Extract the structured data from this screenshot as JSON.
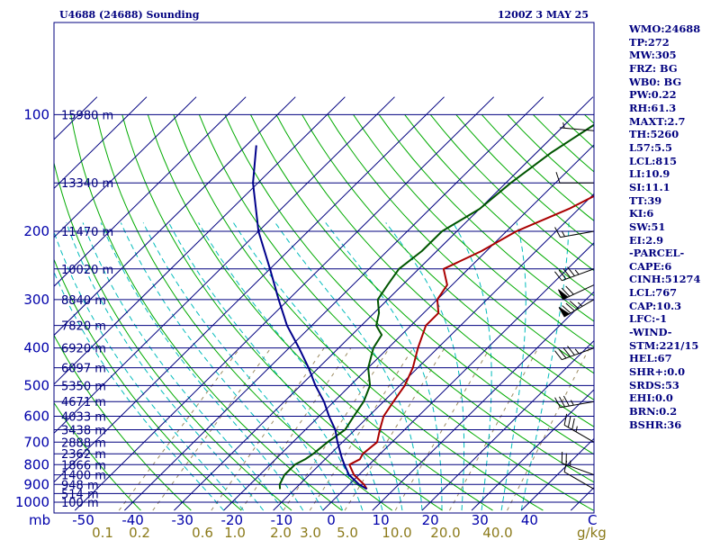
{
  "header": {
    "station": "U4688 (24688) Sounding",
    "time": "1200Z  3 MAY 25"
  },
  "chart_data": {
    "type": "line",
    "diagram": "skew-t log-p",
    "y_unit": "mb",
    "x_unit": "C",
    "mixing_ratio_unit": "g/kg",
    "pressure_range": [
      1000,
      100
    ],
    "pressure_ticks": [
      100,
      200,
      300,
      400,
      500,
      600,
      700,
      800,
      900,
      1000
    ],
    "temperature_ticks": [
      "-50",
      "-40",
      "-30",
      "-20",
      "-10",
      "0",
      "10",
      "20",
      "30",
      "40"
    ],
    "mixing_ratio_labels": [
      "0.1",
      "0.2",
      "0.6",
      "1.0",
      "2.0",
      "3.0",
      "5.0",
      "10.0",
      "20.0",
      "40.0"
    ],
    "height_levels": [
      {
        "p": 100,
        "label": "15980 m"
      },
      {
        "p": 150,
        "label": "13340 m"
      },
      {
        "p": 200,
        "label": "11470 m"
      },
      {
        "p": 250,
        "label": "10020 m"
      },
      {
        "p": 300,
        "label": "8840 m"
      },
      {
        "p": 350,
        "label": "7820 m"
      },
      {
        "p": 400,
        "label": "6920 m"
      },
      {
        "p": 450,
        "label": "6097 m"
      },
      {
        "p": 500,
        "label": "5350 m"
      },
      {
        "p": 550,
        "label": "4671 m"
      },
      {
        "p": 600,
        "label": "4033 m"
      },
      {
        "p": 650,
        "label": "3438 m"
      },
      {
        "p": 700,
        "label": "2888 m"
      },
      {
        "p": 750,
        "label": "2362 m"
      },
      {
        "p": 800,
        "label": "1866 m"
      },
      {
        "p": 850,
        "label": "1400 m"
      },
      {
        "p": 900,
        "label": "948 m"
      },
      {
        "p": 950,
        "label": "514 m"
      },
      {
        "p": 1000,
        "label": "100 m"
      }
    ],
    "series": [
      {
        "key": "temperature",
        "color": "#aa0000",
        "points": [
          [
            925,
            4.5
          ],
          [
            900,
            3
          ],
          [
            850,
            -1
          ],
          [
            800,
            -4
          ],
          [
            775,
            -3
          ],
          [
            750,
            -3.5
          ],
          [
            700,
            -3
          ],
          [
            650,
            -5
          ],
          [
            600,
            -7
          ],
          [
            550,
            -8
          ],
          [
            500,
            -9
          ],
          [
            450,
            -11
          ],
          [
            400,
            -14
          ],
          [
            350,
            -17
          ],
          [
            325,
            -17
          ],
          [
            300,
            -20
          ],
          [
            275,
            -21
          ],
          [
            250,
            -25
          ],
          [
            225,
            -21
          ],
          [
            200,
            -18
          ],
          [
            175,
            -12
          ],
          [
            150,
            -7
          ],
          [
            125,
            -2
          ],
          [
            100,
            2
          ]
        ]
      },
      {
        "key": "dewpoint",
        "color": "#005500",
        "points": [
          [
            925,
            -13
          ],
          [
            900,
            -14
          ],
          [
            850,
            -15
          ],
          [
            800,
            -15
          ],
          [
            775,
            -14
          ],
          [
            750,
            -13.5
          ],
          [
            700,
            -13
          ],
          [
            650,
            -12
          ],
          [
            600,
            -13
          ],
          [
            550,
            -14
          ],
          [
            500,
            -16
          ],
          [
            450,
            -20
          ],
          [
            400,
            -23
          ],
          [
            370,
            -24
          ],
          [
            350,
            -27
          ],
          [
            325,
            -29
          ],
          [
            300,
            -32
          ],
          [
            275,
            -33
          ],
          [
            250,
            -34
          ],
          [
            225,
            -33
          ],
          [
            200,
            -33
          ],
          [
            175,
            -30
          ],
          [
            150,
            -29
          ],
          [
            125,
            -27
          ],
          [
            100,
            -23
          ]
        ]
      },
      {
        "key": "parcel",
        "color": "#00008b",
        "points": [
          [
            925,
            4.5
          ],
          [
            900,
            2
          ],
          [
            850,
            -2
          ],
          [
            800,
            -5
          ],
          [
            767,
            -7
          ],
          [
            700,
            -11
          ],
          [
            650,
            -14
          ],
          [
            600,
            -18
          ],
          [
            550,
            -22
          ],
          [
            500,
            -27
          ],
          [
            450,
            -32
          ],
          [
            400,
            -38
          ],
          [
            350,
            -45
          ],
          [
            300,
            -52
          ],
          [
            250,
            -60
          ],
          [
            200,
            -70
          ],
          [
            150,
            -81
          ],
          [
            120,
            -88
          ]
        ]
      }
    ],
    "winds": [
      {
        "p": 925,
        "dir": 300,
        "spd": 10
      },
      {
        "p": 850,
        "dir": 290,
        "spd": 25
      },
      {
        "p": 700,
        "dir": 300,
        "spd": 35
      },
      {
        "p": 550,
        "dir": 260,
        "spd": 35
      },
      {
        "p": 400,
        "dir": 250,
        "spd": 45
      },
      {
        "p": 300,
        "dir": 240,
        "spd": 85
      },
      {
        "p": 275,
        "dir": 245,
        "spd": 70
      },
      {
        "p": 250,
        "dir": 250,
        "spd": 45
      },
      {
        "p": 200,
        "dir": 260,
        "spd": 15
      },
      {
        "p": 150,
        "dir": 270,
        "spd": 10
      },
      {
        "p": 110,
        "dir": 275,
        "spd": 5
      }
    ],
    "colors": {
      "frame": "#00007f",
      "isobar": "#00007f",
      "isotherm": "#00007f",
      "dry_adiabat": "#00aa00",
      "moist_adiabat": "#00bbbb",
      "mixing_ratio": "#9a8a60"
    }
  },
  "indices": [
    "WMO:24688",
    "TP:272",
    "MW:305",
    "FRZ: BG",
    "WB0: BG",
    "PW:0.22",
    "RH:61.3",
    "MAXT:2.7",
    "TH:5260",
    "L57:5.5",
    "LCL:815",
    "LI:10.9",
    "SI:11.1",
    "TT:39",
    "KI:6",
    "SW:51",
    "EI:2.9",
    "-PARCEL-",
    "CAPE:6",
    "CINH:51274",
    "LCL:767",
    "CAP:10.3",
    "LFC:-1",
    "-WIND-",
    "STM:221/15",
    "HEL:67",
    "SHR+:0.0",
    "SRDS:53",
    "EHI:0.0",
    "BRN:0.2",
    "BSHR:36"
  ]
}
